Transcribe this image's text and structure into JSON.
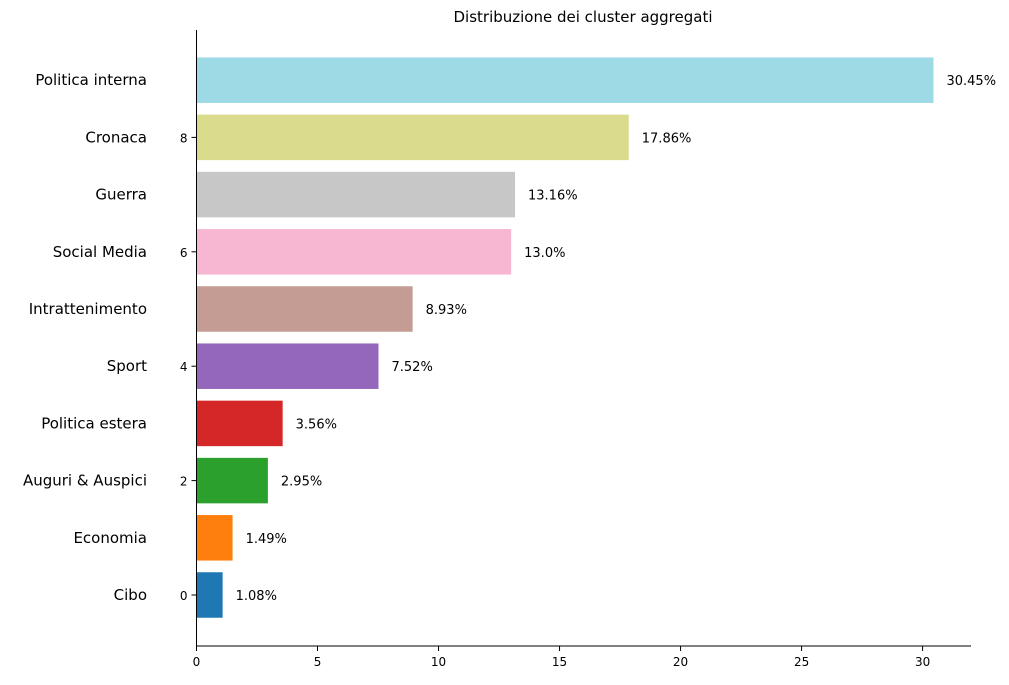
{
  "chart_data": {
    "type": "bar",
    "orientation": "horizontal",
    "title": "Distribuzione dei cluster aggregati",
    "xlabel": "",
    "ylabel": "",
    "xlim": [
      0,
      32
    ],
    "x_ticks": [
      "0",
      "5",
      "10",
      "15",
      "20",
      "25",
      "30"
    ],
    "y_numeric_ticks": [
      "0",
      "2",
      "4",
      "6",
      "8"
    ],
    "grid": false,
    "categories": [
      "Cibo",
      "Economia",
      "Auguri & Auspici",
      "Politica estera",
      "Sport",
      "Intrattenimento",
      "Social Media",
      "Guerra",
      "Cronaca",
      "Politica interna"
    ],
    "values": [
      1.08,
      1.49,
      2.95,
      3.56,
      7.52,
      8.93,
      13.0,
      13.16,
      17.86,
      30.45
    ],
    "value_labels": [
      "1.08%",
      "1.49%",
      "2.95%",
      "3.56%",
      "7.52%",
      "8.93%",
      "13.0%",
      "13.16%",
      "17.86%",
      "30.45%"
    ],
    "colors": [
      "#1f77b4",
      "#ff7f0e",
      "#2ca02c",
      "#d62728",
      "#9467bd",
      "#c49c94",
      "#f7b6d2",
      "#c7c7c7",
      "#dbdb8d",
      "#9edae5"
    ]
  }
}
